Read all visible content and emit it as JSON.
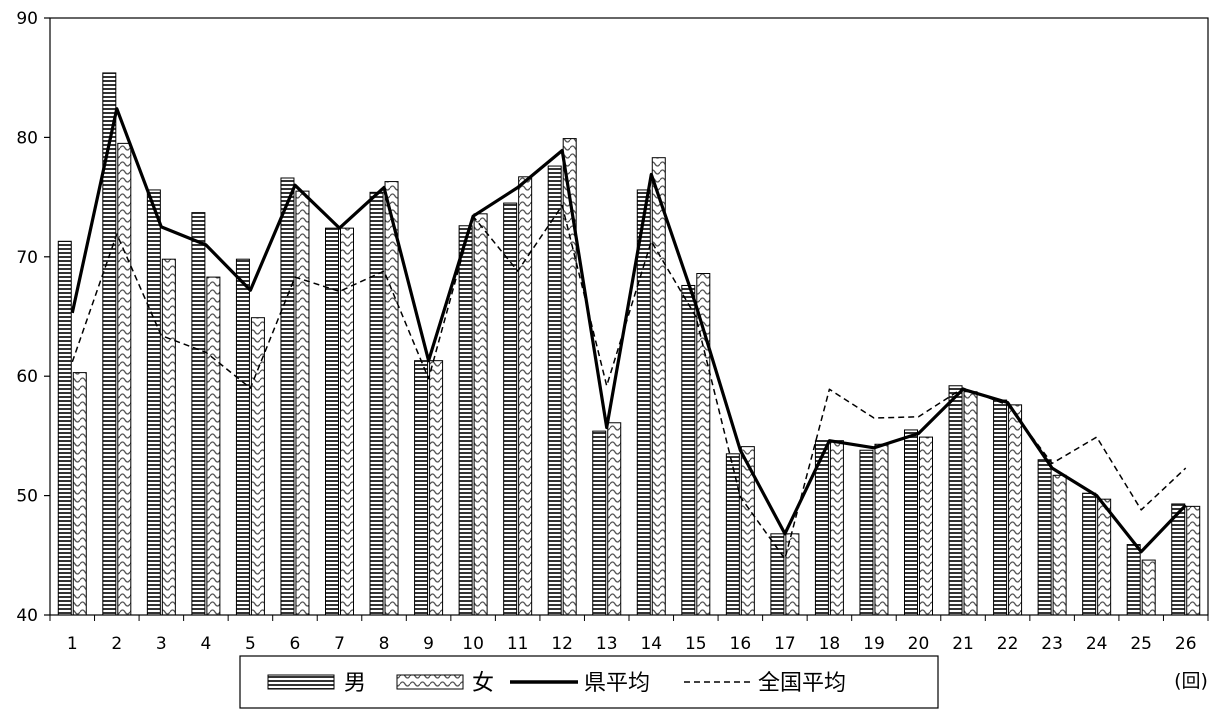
{
  "chart_data": {
    "type": "bar",
    "title": "",
    "xlabel": "",
    "ylabel": "",
    "x_unit": "(回)",
    "ylim": [
      40,
      90
    ],
    "yticks": [
      40,
      50,
      60,
      70,
      80,
      90
    ],
    "grid": false,
    "legend_position": "bottom",
    "categories": [
      "1",
      "2",
      "3",
      "4",
      "5",
      "6",
      "7",
      "8",
      "9",
      "10",
      "11",
      "12",
      "13",
      "14",
      "15",
      "16",
      "17",
      "18",
      "19",
      "20",
      "21",
      "22",
      "23",
      "24",
      "25",
      "26"
    ],
    "series": [
      {
        "name": "男",
        "type": "bar",
        "pattern": "horizontal-stripes",
        "values": [
          71.3,
          85.4,
          75.6,
          73.7,
          69.8,
          76.6,
          72.4,
          75.4,
          61.3,
          72.6,
          74.5,
          77.6,
          55.4,
          75.6,
          67.6,
          53.5,
          46.8,
          54.6,
          53.8,
          55.5,
          59.2,
          58.0,
          53.0,
          50.2,
          45.9,
          49.3
        ]
      },
      {
        "name": "女",
        "type": "bar",
        "pattern": "wavy",
        "values": [
          60.3,
          79.5,
          69.8,
          68.3,
          64.9,
          75.5,
          72.4,
          76.3,
          61.3,
          73.6,
          76.7,
          79.9,
          56.1,
          78.3,
          68.6,
          54.1,
          46.8,
          54.6,
          54.3,
          54.9,
          58.7,
          57.6,
          51.7,
          49.7,
          44.6,
          49.1
        ]
      },
      {
        "name": "県平均",
        "type": "line",
        "style": "solid",
        "values": [
          65.3,
          82.4,
          72.5,
          71.0,
          67.2,
          76.0,
          72.4,
          75.8,
          61.3,
          73.4,
          75.8,
          78.9,
          55.7,
          76.9,
          66.0,
          53.8,
          46.8,
          54.6,
          54.0,
          55.2,
          58.9,
          57.8,
          52.3,
          50.0,
          45.3,
          49.2
        ]
      },
      {
        "name": "全国平均",
        "type": "line",
        "style": "dashed",
        "values": [
          61.2,
          71.9,
          63.4,
          62.0,
          59.0,
          68.3,
          67.1,
          68.8,
          59.8,
          73.4,
          68.8,
          74.3,
          59.2,
          71.3,
          65.0,
          49.9,
          44.7,
          58.9,
          56.5,
          56.6,
          59.0,
          57.6,
          52.7,
          54.9,
          48.8,
          52.3
        ]
      }
    ],
    "colors": {
      "axis": "#000000",
      "line": "#000000",
      "bar_fill": "#ffffff"
    }
  }
}
